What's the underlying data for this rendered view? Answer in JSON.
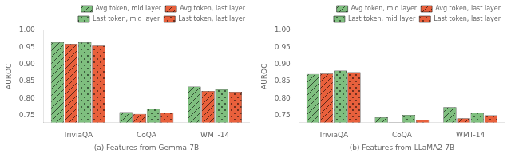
{
  "chart_data": [
    {
      "type": "bar",
      "xlabel": "(a) Features from Gemma-7B",
      "ylabel": "AUROC",
      "categories": [
        "TriviaQA",
        "CoQA",
        "WMT-14"
      ],
      "series": [
        {
          "name": "Avg token, mid layer",
          "color": "#7fbf7f",
          "values": [
            0.965,
            0.76,
            0.835
          ]
        },
        {
          "name": "Avg token, last layer",
          "color": "#e8603c",
          "values": [
            0.96,
            0.755,
            0.822
          ]
        },
        {
          "name": "Last token, mid layer",
          "color": "#7fbf7f",
          "values": [
            0.965,
            0.77,
            0.827
          ]
        },
        {
          "name": "Last token, last layer",
          "color": "#e8603c",
          "values": [
            0.955,
            0.758,
            0.82
          ]
        }
      ],
      "ylim": [
        0.73,
        1.0
      ],
      "yticks": [
        0.75,
        {
          "value": 0.8,
          "label": "0.80"
        },
        0.85,
        {
          "value": 0.9,
          "label": "0.90"
        },
        0.95,
        {
          "value": 1.0,
          "label": "1.00"
        }
      ],
      "grid": false,
      "legend": "upper right"
    },
    {
      "type": "bar",
      "xlabel": "(b) Features from LLaMA2-7B",
      "ylabel": "AUROC",
      "categories": [
        "TriviaQA",
        "CoQA",
        "WMT-14"
      ],
      "series": [
        {
          "name": "Avg token, mid layer",
          "color": "#7fbf7f",
          "values": [
            0.872,
            0.745,
            0.775
          ]
        },
        {
          "name": "Avg token, last layer",
          "color": "#e8603c",
          "values": [
            0.873,
            0.73,
            0.742
          ]
        },
        {
          "name": "Last token, mid layer",
          "color": "#7fbf7f",
          "values": [
            0.882,
            0.752,
            0.758
          ]
        },
        {
          "name": "Last token, last layer",
          "color": "#e8603c",
          "values": [
            0.877,
            0.737,
            0.751
          ]
        }
      ],
      "ylim": [
        0.73,
        1.0
      ],
      "yticks": [
        0.75,
        {
          "value": 0.8,
          "label": "0.80"
        },
        0.85,
        {
          "value": 0.9,
          "label": "0.90"
        },
        0.95,
        {
          "value": 1.0,
          "label": "1.00"
        }
      ],
      "grid": false,
      "legend": "upper right"
    }
  ]
}
